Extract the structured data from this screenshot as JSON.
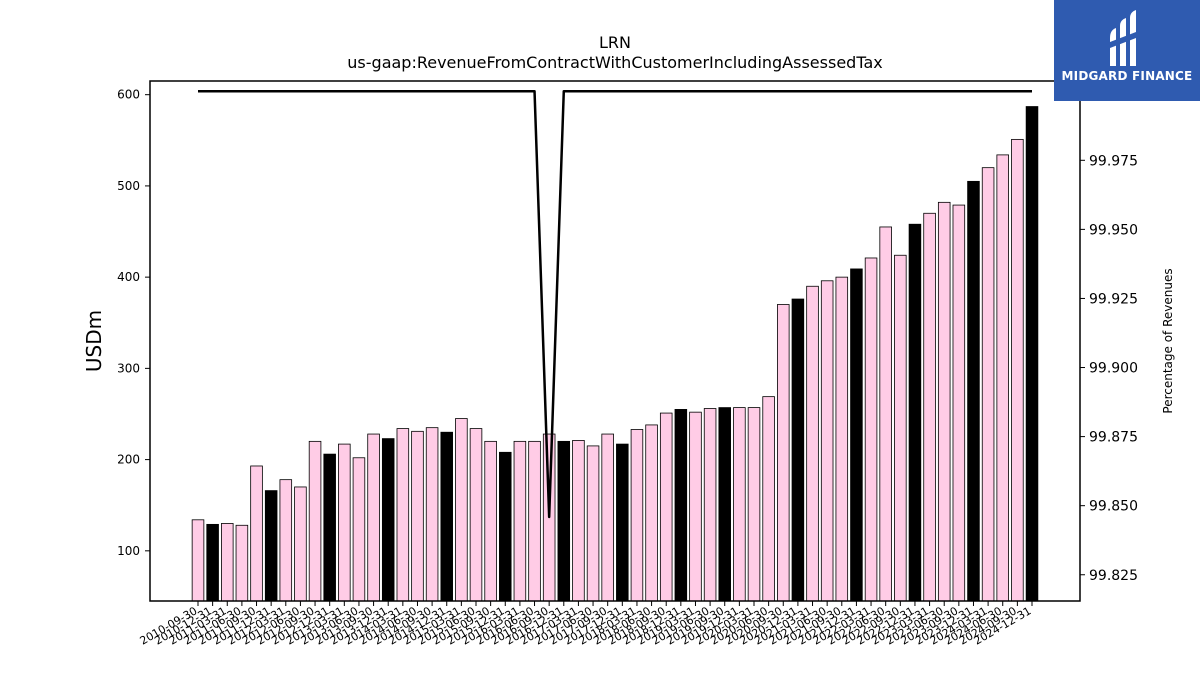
{
  "chart_data": {
    "type": "bar+line",
    "title": "LRN",
    "subtitle": "us-gaap:RevenueFromContractWithCustomerIncludingAssessedTax",
    "ylabel": "USDm",
    "y2label": "Percentage of Revenues",
    "ylim": [
      45,
      615
    ],
    "y2lim": [
      99.8155,
      100.0037
    ],
    "yticks": [
      "100",
      "200",
      "300",
      "400",
      "500",
      "600"
    ],
    "y2ticks": [
      "99.825",
      "99.850",
      "99.875",
      "99.900",
      "99.925",
      "99.950",
      "99.975",
      "100.000"
    ],
    "categories": [
      "2010-09-30",
      "2010-12-31",
      "2011-03-31",
      "2011-06-30",
      "2011-09-30",
      "2011-12-31",
      "2012-03-31",
      "2012-06-30",
      "2012-09-30",
      "2012-12-31",
      "2013-03-31",
      "2013-06-30",
      "2013-09-30",
      "2013-12-31",
      "2014-03-31",
      "2014-06-30",
      "2014-09-30",
      "2014-12-31",
      "2015-03-31",
      "2015-06-30",
      "2015-09-30",
      "2015-12-31",
      "2016-03-31",
      "2016-06-30",
      "2016-09-30",
      "2016-12-31",
      "2017-03-31",
      "2017-06-30",
      "2017-09-30",
      "2017-12-31",
      "2018-03-31",
      "2018-06-30",
      "2018-09-30",
      "2018-12-31",
      "2019-03-31",
      "2019-06-30",
      "2019-09-30",
      "2019-12-31",
      "2020-03-31",
      "2020-06-30",
      "2020-09-30",
      "2020-12-31",
      "2021-03-31",
      "2021-06-30",
      "2021-09-30",
      "2021-12-31",
      "2022-03-31",
      "2022-06-30",
      "2022-09-30",
      "2022-12-31",
      "2023-03-31",
      "2023-06-30",
      "2023-09-30",
      "2023-12-31",
      "2024-03-31",
      "2024-06-30",
      "2024-09-30",
      "2024-12-31"
    ],
    "series": [
      {
        "type": "bar",
        "values": [
          134,
          129,
          130,
          128,
          193,
          166,
          178,
          170,
          220,
          206,
          217,
          202,
          228,
          223,
          234,
          231,
          235,
          230,
          245,
          234,
          220,
          208,
          220,
          220,
          228,
          220,
          221,
          215,
          228,
          217,
          233,
          238,
          251,
          255,
          252,
          256,
          257,
          257,
          257,
          269,
          370,
          376,
          390,
          396,
          400,
          409,
          421,
          455,
          424,
          458,
          470,
          482,
          479,
          505,
          520,
          534,
          551,
          587
        ],
        "colors": [
          "#ffcce6",
          "#000000",
          "#ffcce6",
          "#ffcce6",
          "#ffcce6",
          "#000000",
          "#ffcce6",
          "#ffcce6",
          "#ffcce6",
          "#000000",
          "#ffcce6",
          "#ffcce6",
          "#ffcce6",
          "#000000",
          "#ffcce6",
          "#ffcce6",
          "#ffcce6",
          "#000000",
          "#ffcce6",
          "#ffcce6",
          "#ffcce6",
          "#000000",
          "#ffcce6",
          "#ffcce6",
          "#ffcce6",
          "#000000",
          "#ffcce6",
          "#ffcce6",
          "#ffcce6",
          "#000000",
          "#ffcce6",
          "#ffcce6",
          "#ffcce6",
          "#000000",
          "#ffcce6",
          "#ffcce6",
          "#000000",
          "#ffcce6",
          "#ffcce6",
          "#ffcce6",
          "#ffcce6",
          "#000000",
          "#ffcce6",
          "#ffcce6",
          "#ffcce6",
          "#000000",
          "#ffcce6",
          "#ffcce6",
          "#ffcce6",
          "#000000",
          "#ffcce6",
          "#ffcce6",
          "#ffcce6",
          "#000000",
          "#ffcce6",
          "#ffcce6",
          "#ffcce6",
          "#000000"
        ]
      },
      {
        "type": "line",
        "axis": "right",
        "color": "#000000",
        "values": [
          100,
          100,
          100,
          100,
          100,
          100,
          100,
          100,
          100,
          100,
          100,
          100,
          100,
          100,
          100,
          100,
          100,
          100,
          100,
          100,
          100,
          100,
          100,
          100,
          99.8459,
          100,
          100,
          100,
          100,
          100,
          100,
          100,
          100,
          100,
          100,
          100,
          100,
          100,
          100,
          100,
          100,
          100,
          100,
          100,
          100,
          100,
          100,
          100,
          100,
          100,
          100,
          100,
          100,
          100,
          100,
          100,
          100,
          100
        ]
      }
    ]
  },
  "logo": {
    "text": "MIDGARD FINANCE",
    "bg": "#2f5bb0"
  }
}
